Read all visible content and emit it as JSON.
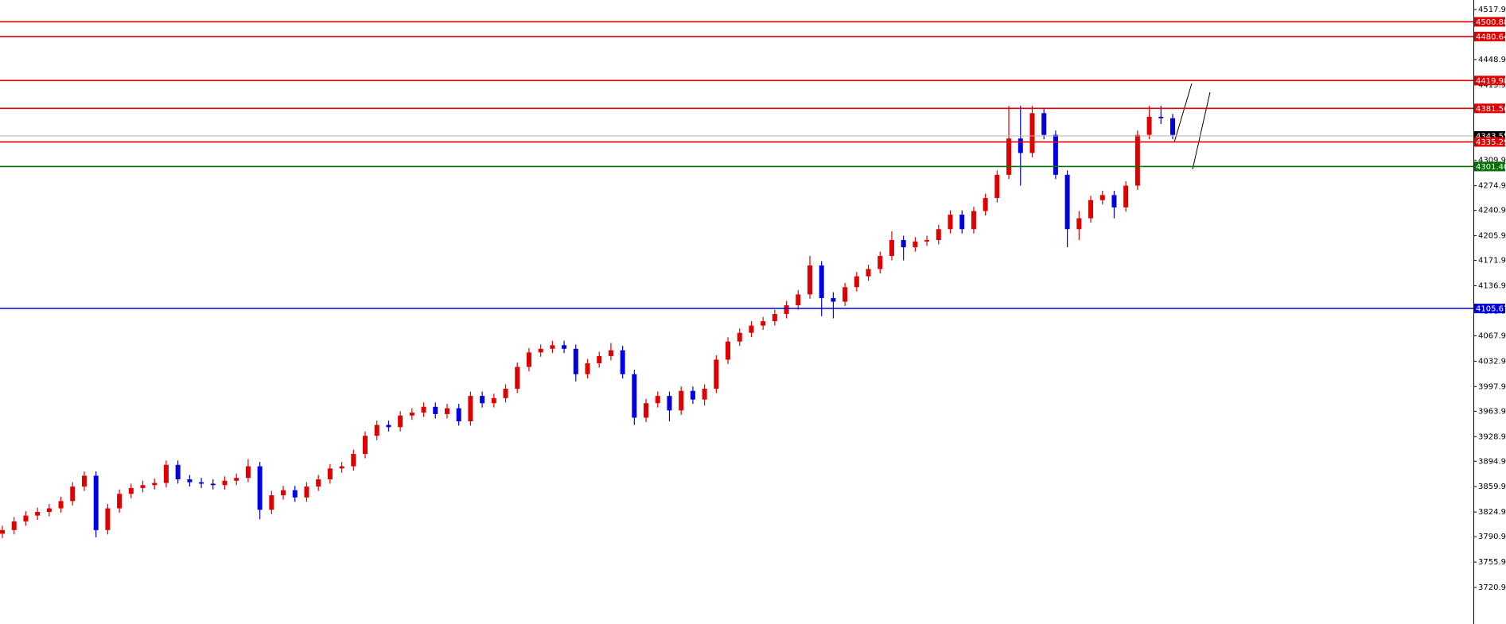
{
  "chart_data": {
    "type": "candlestick",
    "ylim": [
      3670.5,
      4531.0
    ],
    "yticks": [
      {
        "value": 4517.9,
        "label": "4517.90"
      },
      {
        "value": 4448.9,
        "label": "4448.90"
      },
      {
        "value": 4413.9,
        "label": "4413.90"
      },
      {
        "value": 4309.9,
        "label": "4309.90"
      },
      {
        "value": 4274.9,
        "label": "4274.90"
      },
      {
        "value": 4240.9,
        "label": "4240.90"
      },
      {
        "value": 4205.9,
        "label": "4205.90"
      },
      {
        "value": 4171.9,
        "label": "4171.90"
      },
      {
        "value": 4136.9,
        "label": "4136.90"
      },
      {
        "value": 4101.9,
        "label": "4101.90"
      },
      {
        "value": 4067.9,
        "label": "4067.90"
      },
      {
        "value": 4032.9,
        "label": "4032.90"
      },
      {
        "value": 3997.9,
        "label": "3997.90"
      },
      {
        "value": 3963.9,
        "label": "3963.90"
      },
      {
        "value": 3928.9,
        "label": "3928.90"
      },
      {
        "value": 3894.9,
        "label": "3894.90"
      },
      {
        "value": 3859.9,
        "label": "3859.90"
      },
      {
        "value": 3824.9,
        "label": "3824.90"
      },
      {
        "value": 3790.9,
        "label": "3790.90"
      },
      {
        "value": 3755.9,
        "label": "3755.90"
      },
      {
        "value": 3720.9,
        "label": "3720.90"
      }
    ],
    "up_color": "#e00000",
    "down_color": "#0000e0",
    "open": [
      3795,
      3800,
      3812,
      3820,
      3825,
      3830,
      3840,
      3860,
      3875,
      3800,
      3830,
      3850,
      3858,
      3862,
      3865,
      3890,
      3870,
      3866,
      3864,
      3862,
      3868,
      3872,
      3888,
      3828,
      3848,
      3855,
      3845,
      3860,
      3870,
      3885,
      3888,
      3905,
      3930,
      3945,
      3942,
      3958,
      3962,
      3970,
      3960,
      3968,
      3950,
      3985,
      3975,
      3982,
      3995,
      4025,
      4045,
      4050,
      4055,
      4050,
      4015,
      4030,
      4040,
      4048,
      4015,
      3955,
      3975,
      3985,
      3965,
      3992,
      3980,
      3995,
      4035,
      4060,
      4072,
      4082,
      4088,
      4098,
      4110,
      4125,
      4165,
      4120,
      4115,
      4135,
      4150,
      4160,
      4178,
      4200,
      4190,
      4198,
      4200,
      4215,
      4235,
      4215,
      4240,
      4258,
      4290,
      4340,
      4320,
      4375,
      4345,
      4290,
      4215,
      4230,
      4255,
      4262,
      4245,
      4275,
      4345,
      4370,
      4368
    ],
    "high": [
      3806,
      3818,
      3826,
      3831,
      3836,
      3846,
      3866,
      3881,
      3881,
      3836,
      3856,
      3864,
      3868,
      3871,
      3896,
      3896,
      3876,
      3872,
      3870,
      3874,
      3878,
      3898,
      3894,
      3854,
      3861,
      3861,
      3866,
      3876,
      3891,
      3894,
      3911,
      3936,
      3951,
      3951,
      3964,
      3968,
      3976,
      3976,
      3974,
      3974,
      3991,
      3991,
      3988,
      4001,
      4031,
      4051,
      4056,
      4061,
      4061,
      4056,
      4036,
      4046,
      4058,
      4054,
      4021,
      3981,
      3991,
      3991,
      3998,
      3998,
      4001,
      4041,
      4066,
      4078,
      4088,
      4094,
      4104,
      4116,
      4131,
      4178,
      4171,
      4128,
      4141,
      4156,
      4166,
      4184,
      4212,
      4206,
      4204,
      4206,
      4221,
      4241,
      4241,
      4246,
      4264,
      4296,
      4385,
      4385,
      4385,
      4381,
      4351,
      4296,
      4240,
      4261,
      4268,
      4268,
      4281,
      4351,
      4385,
      4385,
      4374
    ],
    "low": [
      3789,
      3794,
      3806,
      3814,
      3819,
      3824,
      3834,
      3854,
      3790,
      3794,
      3824,
      3844,
      3852,
      3856,
      3859,
      3864,
      3860,
      3858,
      3856,
      3856,
      3862,
      3866,
      3815,
      3822,
      3842,
      3839,
      3839,
      3854,
      3864,
      3879,
      3882,
      3899,
      3924,
      3936,
      3936,
      3952,
      3956,
      3954,
      3954,
      3944,
      3944,
      3969,
      3969,
      3976,
      3989,
      4019,
      4039,
      4044,
      4044,
      4005,
      4009,
      4024,
      4034,
      4009,
      3945,
      3949,
      3969,
      3950,
      3959,
      3974,
      3972,
      3989,
      4029,
      4054,
      4066,
      4076,
      4082,
      4092,
      4104,
      4119,
      4095,
      4092,
      4109,
      4129,
      4144,
      4154,
      4172,
      4172,
      4184,
      4192,
      4194,
      4209,
      4209,
      4209,
      4234,
      4252,
      4284,
      4275,
      4314,
      4339,
      4284,
      4190,
      4200,
      4224,
      4249,
      4230,
      4239,
      4269,
      4339,
      4360,
      4339
    ],
    "close": [
      3800,
      3812,
      3820,
      3825,
      3830,
      3840,
      3860,
      3875,
      3800,
      3830,
      3850,
      3858,
      3862,
      3865,
      3890,
      3870,
      3866,
      3864,
      3862,
      3868,
      3872,
      3888,
      3828,
      3848,
      3855,
      3845,
      3860,
      3870,
      3885,
      3888,
      3905,
      3930,
      3945,
      3942,
      3958,
      3962,
      3970,
      3960,
      3968,
      3950,
      3985,
      3975,
      3982,
      3995,
      4025,
      4045,
      4050,
      4055,
      4050,
      4015,
      4030,
      4040,
      4048,
      4015,
      3955,
      3975,
      3985,
      3965,
      3992,
      3980,
      3995,
      4035,
      4060,
      4072,
      4082,
      4088,
      4098,
      4110,
      4125,
      4165,
      4120,
      4115,
      4135,
      4150,
      4160,
      4178,
      4200,
      4190,
      4198,
      4200,
      4215,
      4235,
      4215,
      4240,
      4258,
      4290,
      4340,
      4320,
      4375,
      4345,
      4290,
      4215,
      4230,
      4255,
      4262,
      4245,
      4275,
      4345,
      4370,
      4368,
      4345
    ],
    "current_price": 4343.55,
    "levels": [
      {
        "value": 4500.88,
        "color": "#e00000"
      },
      {
        "value": 4480.64,
        "color": "#e00000"
      },
      {
        "value": 4419.98,
        "color": "#e00000"
      },
      {
        "value": 4381.56,
        "color": "#e00000"
      },
      {
        "value": 4335.29,
        "color": "#e00000"
      },
      {
        "value": 4301.4,
        "label": "4301.40",
        "color": "#007000"
      },
      {
        "value": 4105.67,
        "color": "#0000e0"
      }
    ]
  }
}
